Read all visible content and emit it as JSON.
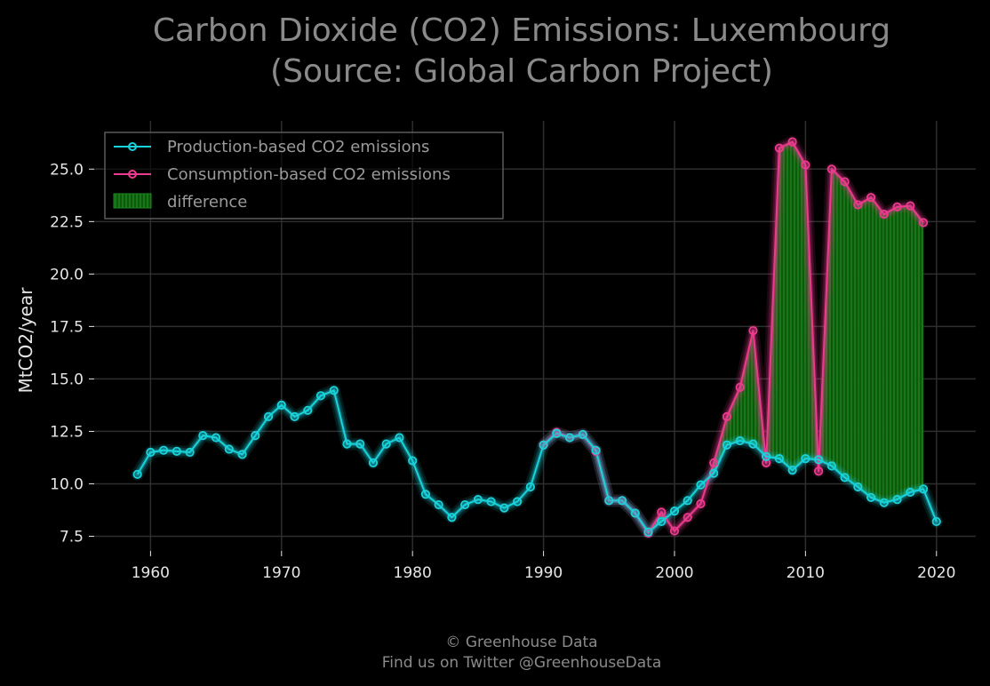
{
  "chart_data": {
    "type": "line",
    "title": "Carbon Dioxide (CO2) Emissions: Luxembourg",
    "subtitle": "(Source: Global Carbon Project)",
    "ylabel": "MtCO2/year",
    "xlabel": "",
    "xlim": [
      1955.7,
      2023.0
    ],
    "ylim": [
      6.8,
      27.3
    ],
    "xticks": [
      1960,
      1970,
      1980,
      1990,
      2000,
      2010,
      2020
    ],
    "xtick_labels": [
      "1960",
      "1970",
      "1980",
      "1990",
      "2000",
      "2010",
      "2020"
    ],
    "yticks": [
      7.5,
      10.0,
      12.5,
      15.0,
      17.5,
      20.0,
      22.5,
      25.0
    ],
    "ytick_labels": [
      "7.5",
      "10.0",
      "12.5",
      "15.0",
      "17.5",
      "20.0",
      "22.5",
      "25.0"
    ],
    "grid": true,
    "legend_position": "upper-left",
    "background": "#000000",
    "series": [
      {
        "name": "Production-based CO2 emissions",
        "color": "#19d3dc",
        "x": [
          1959,
          1960,
          1961,
          1962,
          1963,
          1964,
          1965,
          1966,
          1967,
          1968,
          1969,
          1970,
          1971,
          1972,
          1973,
          1974,
          1975,
          1976,
          1977,
          1978,
          1979,
          1980,
          1981,
          1982,
          1983,
          1984,
          1985,
          1986,
          1987,
          1988,
          1989,
          1990,
          1991,
          1992,
          1993,
          1994,
          1995,
          1996,
          1997,
          1998,
          1999,
          2000,
          2001,
          2002,
          2003,
          2004,
          2005,
          2006,
          2007,
          2008,
          2009,
          2010,
          2011,
          2012,
          2013,
          2014,
          2015,
          2016,
          2017,
          2018,
          2019,
          2020
        ],
        "values": [
          10.45,
          11.5,
          11.6,
          11.55,
          11.5,
          12.3,
          12.2,
          11.65,
          11.4,
          12.3,
          13.2,
          13.75,
          13.2,
          13.5,
          14.2,
          14.45,
          11.9,
          11.9,
          11.0,
          11.9,
          12.2,
          11.1,
          9.5,
          9.0,
          8.4,
          9.0,
          9.25,
          9.15,
          8.85,
          9.15,
          9.85,
          11.85,
          12.4,
          12.2,
          12.35,
          11.6,
          9.2,
          9.2,
          8.6,
          7.7,
          8.2,
          8.7,
          9.2,
          9.95,
          10.5,
          11.85,
          12.05,
          11.9,
          11.3,
          11.2,
          10.65,
          11.2,
          11.15,
          10.85,
          10.3,
          9.85,
          9.35,
          9.1,
          9.25,
          9.6,
          9.75,
          8.2
        ]
      },
      {
        "name": "Consumption-based CO2 emissions",
        "color": "#ec3b8e",
        "x": [
          1990,
          1991,
          1992,
          1993,
          1994,
          1995,
          1996,
          1997,
          1998,
          1999,
          2000,
          2001,
          2002,
          2003,
          2004,
          2005,
          2006,
          2007,
          2008,
          2009,
          2010,
          2011,
          2012,
          2013,
          2014,
          2015,
          2016,
          2017,
          2018,
          2019
        ],
        "values": [
          11.85,
          12.45,
          12.2,
          12.35,
          11.55,
          9.2,
          9.2,
          8.6,
          7.65,
          8.65,
          7.75,
          8.4,
          9.05,
          11.0,
          13.2,
          14.6,
          17.3,
          11.0,
          26.0,
          26.3,
          25.2,
          10.6,
          25.0,
          24.4,
          23.3,
          23.65,
          22.85,
          23.2,
          23.25,
          22.45
        ]
      }
    ],
    "difference": {
      "name": "difference",
      "color": "#1f8a1f"
    }
  },
  "footer": {
    "line1": "© Greenhouse Data",
    "line2": "Find us on Twitter @GreenhouseData"
  }
}
